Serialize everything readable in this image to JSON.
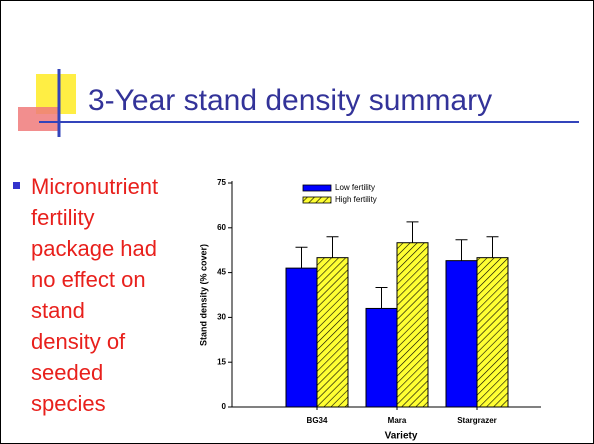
{
  "slide": {
    "title": "3-Year stand density summary",
    "bullet_lines": [
      "Micronutrient",
      "fertility",
      "package had",
      "no effect on",
      "stand",
      "density of",
      "seeded",
      "species"
    ]
  },
  "chart_data": {
    "type": "bar",
    "categories": [
      "BG34",
      "Mara",
      "Stargrazer"
    ],
    "series": [
      {
        "name": "Low fertility",
        "color": "#0000ff",
        "values": [
          46.5,
          33,
          49
        ],
        "errors": [
          7,
          7,
          7
        ]
      },
      {
        "name": "High fertility",
        "color": "#ffff33",
        "hatch": true,
        "values": [
          50,
          55,
          50
        ],
        "errors": [
          7,
          7,
          7
        ]
      }
    ],
    "ylim": [
      0,
      75
    ],
    "yticks": [
      0,
      15,
      30,
      45,
      60,
      75
    ],
    "xlabel": "Variety",
    "ylabel": "Stand density (% cover)",
    "legend": "top"
  }
}
